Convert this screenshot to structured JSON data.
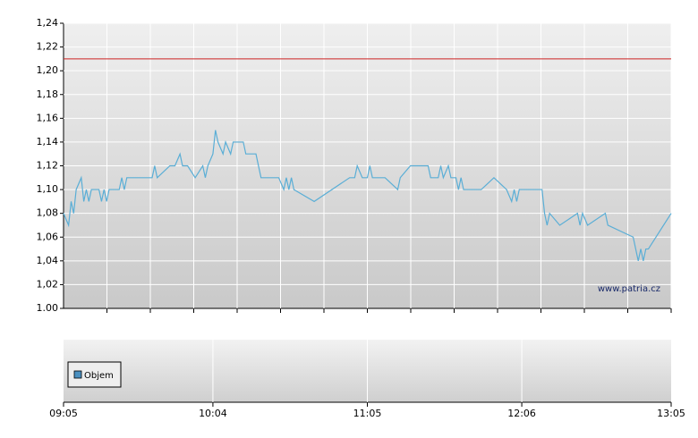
{
  "chart_data": {
    "type": "line",
    "x": [
      "09:05",
      "09:07",
      "09:08",
      "09:09",
      "09:10",
      "09:12",
      "09:13",
      "09:14",
      "09:15",
      "09:16",
      "09:19",
      "09:20",
      "09:21",
      "09:22",
      "09:23",
      "09:27",
      "09:28",
      "09:29",
      "09:30",
      "09:40",
      "09:41",
      "09:42",
      "09:47",
      "09:49",
      "09:51",
      "09:52",
      "09:54",
      "09:57",
      "10:00",
      "10:01",
      "10:02",
      "10:04",
      "10:05",
      "10:06",
      "10:08",
      "10:09",
      "10:11",
      "10:12",
      "10:16",
      "10:17",
      "10:21",
      "10:22",
      "10:23",
      "10:30",
      "10:32",
      "10:33",
      "10:34",
      "10:35",
      "10:36",
      "10:44",
      "10:58",
      "11:00",
      "11:01",
      "11:03",
      "11:05",
      "11:06",
      "11:07",
      "11:12",
      "11:17",
      "11:18",
      "11:22",
      "11:29",
      "11:30",
      "11:33",
      "11:34",
      "11:35",
      "11:37",
      "11:38",
      "11:40",
      "11:41",
      "11:42",
      "11:43",
      "11:50",
      "11:55",
      "12:00",
      "12:02",
      "12:03",
      "12:04",
      "12:05",
      "12:14",
      "12:15",
      "12:16",
      "12:17",
      "12:21",
      "12:28",
      "12:29",
      "12:30",
      "12:32",
      "12:39",
      "12:40",
      "12:50",
      "12:52",
      "12:53",
      "12:54",
      "12:55",
      "12:56",
      "13:05"
    ],
    "series": [
      {
        "color": "#5aaed6",
        "values": [
          1.08,
          1.07,
          1.09,
          1.08,
          1.1,
          1.11,
          1.09,
          1.1,
          1.09,
          1.1,
          1.1,
          1.09,
          1.1,
          1.09,
          1.1,
          1.1,
          1.11,
          1.1,
          1.11,
          1.11,
          1.12,
          1.11,
          1.12,
          1.12,
          1.13,
          1.12,
          1.12,
          1.11,
          1.12,
          1.11,
          1.12,
          1.13,
          1.15,
          1.14,
          1.13,
          1.14,
          1.13,
          1.14,
          1.14,
          1.13,
          1.13,
          1.12,
          1.11,
          1.11,
          1.1,
          1.11,
          1.1,
          1.11,
          1.1,
          1.09,
          1.11,
          1.11,
          1.12,
          1.11,
          1.11,
          1.12,
          1.11,
          1.11,
          1.1,
          1.11,
          1.12,
          1.12,
          1.11,
          1.11,
          1.12,
          1.11,
          1.12,
          1.11,
          1.11,
          1.1,
          1.11,
          1.1,
          1.1,
          1.11,
          1.1,
          1.09,
          1.1,
          1.09,
          1.1,
          1.1,
          1.08,
          1.07,
          1.08,
          1.07,
          1.08,
          1.07,
          1.08,
          1.07,
          1.08,
          1.07,
          1.06,
          1.04,
          1.05,
          1.04,
          1.05,
          1.05,
          1.08
        ]
      }
    ],
    "xlim": [
      "09:05",
      "13:05"
    ],
    "xticks": [
      "09:05",
      "10:04",
      "11:05",
      "12:06",
      "13:05"
    ],
    "ylim": [
      1.0,
      1.24
    ],
    "yticks": [
      {
        "value": 1.0,
        "label": "1.00"
      },
      {
        "value": 1.02,
        "label": "1,02"
      },
      {
        "value": 1.04,
        "label": "1,04"
      },
      {
        "value": 1.06,
        "label": "1,06"
      },
      {
        "value": 1.08,
        "label": "1,08"
      },
      {
        "value": 1.1,
        "label": "1,10"
      },
      {
        "value": 1.12,
        "label": "1,12"
      },
      {
        "value": 1.14,
        "label": "1,14"
      },
      {
        "value": 1.16,
        "label": "1,16"
      },
      {
        "value": 1.18,
        "label": "1,18"
      },
      {
        "value": 1.2,
        "label": "1,20"
      },
      {
        "value": 1.22,
        "label": "1,22"
      },
      {
        "value": 1.24,
        "label": "1,24"
      }
    ],
    "reference_line": {
      "value": 1.21,
      "color": "#cc2222"
    },
    "grid": true,
    "watermark": "www.patria.cz",
    "volume_legend": {
      "name": "Objem",
      "color": "#4a90c0"
    }
  }
}
